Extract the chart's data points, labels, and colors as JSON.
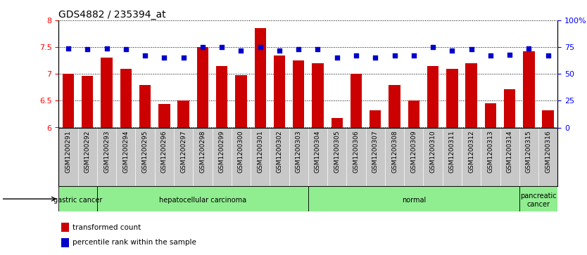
{
  "title": "GDS4882 / 235394_at",
  "samples": [
    "GSM1200291",
    "GSM1200292",
    "GSM1200293",
    "GSM1200294",
    "GSM1200295",
    "GSM1200296",
    "GSM1200297",
    "GSM1200298",
    "GSM1200299",
    "GSM1200300",
    "GSM1200301",
    "GSM1200302",
    "GSM1200303",
    "GSM1200304",
    "GSM1200305",
    "GSM1200306",
    "GSM1200307",
    "GSM1200308",
    "GSM1200309",
    "GSM1200310",
    "GSM1200311",
    "GSM1200312",
    "GSM1200313",
    "GSM1200314",
    "GSM1200315",
    "GSM1200316"
  ],
  "transformed_count": [
    7.0,
    6.97,
    7.3,
    7.1,
    6.8,
    6.44,
    6.5,
    7.5,
    7.15,
    6.98,
    7.85,
    7.35,
    7.25,
    7.2,
    6.18,
    7.0,
    6.32,
    6.8,
    6.5,
    7.15,
    7.1,
    7.2,
    6.45,
    6.72,
    7.42,
    6.32
  ],
  "percentile_rank": [
    74,
    73,
    74,
    73,
    67,
    65,
    65,
    75,
    75,
    72,
    75,
    72,
    73,
    73,
    65,
    67,
    65,
    67,
    67,
    75,
    72,
    73,
    67,
    68,
    74,
    67
  ],
  "disease_groups": [
    {
      "label": "gastric cancer",
      "start": 0,
      "end": 2
    },
    {
      "label": "hepatocellular carcinoma",
      "start": 2,
      "end": 13
    },
    {
      "label": "normal",
      "start": 13,
      "end": 24
    },
    {
      "label": "pancreatic\ncancer",
      "start": 24,
      "end": 26
    }
  ],
  "ylim": [
    6.0,
    8.0
  ],
  "yticks_left": [
    6.0,
    6.5,
    7.0,
    7.5,
    8.0
  ],
  "yticks_right": [
    0,
    25,
    50,
    75,
    100
  ],
  "bar_color": "#CC0000",
  "dot_color": "#0000CC",
  "bg_color": "#FFFFFF",
  "tick_bg_color": "#C8C8C8",
  "group_bg_color": "#90EE90",
  "legend_red": "transformed count",
  "legend_blue": "percentile rank within the sample",
  "n_samples": 26
}
